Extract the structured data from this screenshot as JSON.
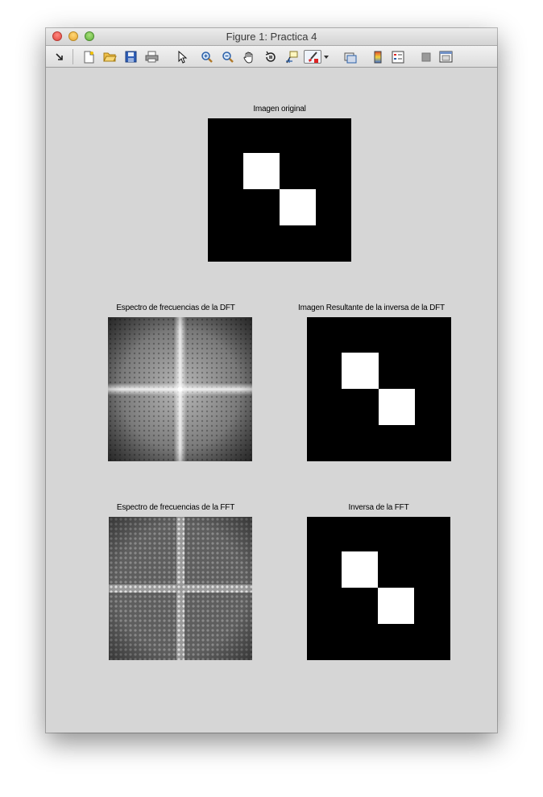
{
  "window": {
    "title": "Figure 1: Practica 4"
  },
  "toolbar": {
    "buttons": [
      {
        "name": "dock-arrow-icon"
      },
      {
        "name": "new-figure-icon"
      },
      {
        "name": "open-file-icon"
      },
      {
        "name": "save-figure-icon"
      },
      {
        "name": "print-figure-icon"
      },
      {
        "name": "edit-plot-arrow-icon"
      },
      {
        "name": "zoom-in-icon"
      },
      {
        "name": "zoom-out-icon"
      },
      {
        "name": "pan-hand-icon"
      },
      {
        "name": "rotate-3d-icon"
      },
      {
        "name": "data-cursor-icon"
      },
      {
        "name": "brush-icon"
      },
      {
        "name": "link-plot-icon"
      },
      {
        "name": "insert-colorbar-icon"
      },
      {
        "name": "insert-legend-icon"
      },
      {
        "name": "hide-plot-tools-icon"
      },
      {
        "name": "show-plot-tools-icon"
      }
    ]
  },
  "plots": {
    "original": {
      "title": "Imagen original"
    },
    "dft_spectrum": {
      "title": "Espectro de frecuencias de la DFT"
    },
    "dft_inverse": {
      "title": "Imagen Resultante de la inversa de la DFT"
    },
    "fft_spectrum": {
      "title": "Espectro de frecuencias de la FFT"
    },
    "fft_inverse": {
      "title": "Inversa de la FFT"
    }
  },
  "colors": {
    "figure_bg": "#d6d6d6",
    "axes_bg": "#000000",
    "square": "#ffffff"
  }
}
